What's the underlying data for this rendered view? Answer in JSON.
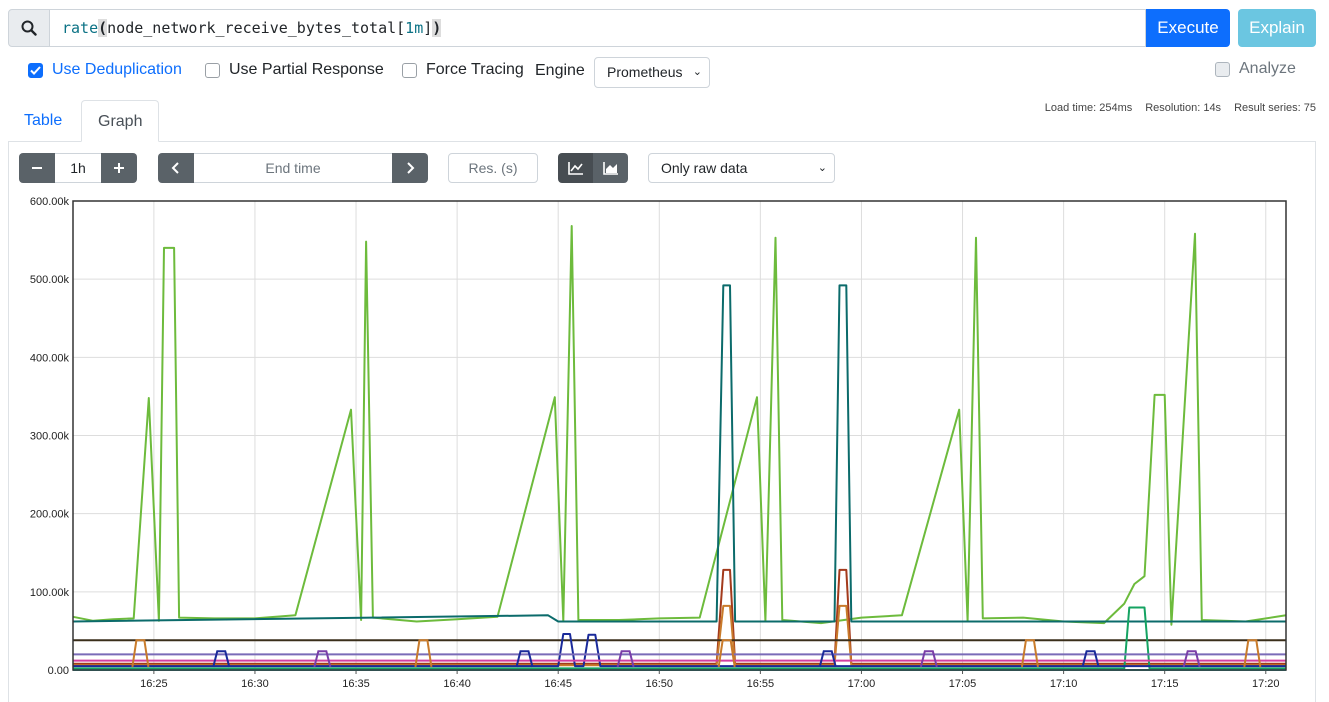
{
  "query": {
    "fn": "rate",
    "open": "(",
    "metric": "node_network_receive_bytes_total[",
    "range": "1m",
    "close_bracket": "]",
    "close": ")"
  },
  "buttons": {
    "execute": "Execute",
    "explain": "Explain"
  },
  "options": {
    "dedup": "Use Deduplication",
    "partial": "Use Partial Response",
    "tracing": "Force Tracing",
    "engine_label": "Engine",
    "engine_value": "Prometheus",
    "analyze": "Analyze"
  },
  "tabs": {
    "table": "Table",
    "graph": "Graph"
  },
  "stats": {
    "load": "Load time: 254ms",
    "resolution": "Resolution: 14s",
    "series": "Result series: 75"
  },
  "controls": {
    "minus": "−",
    "range": "1h",
    "plus": "+",
    "end_time": "End time",
    "res": "Res. (s)",
    "raw": "Only raw data"
  },
  "icons": {
    "search": "search-icon",
    "minus": "minus-icon",
    "plus": "plus-icon",
    "prev": "chevron-left-icon",
    "next": "chevron-right-icon",
    "lines": "line-chart-icon",
    "stacked": "area-chart-icon"
  },
  "colors": {
    "primary": "#0d6efd",
    "info": "#5bc0de",
    "dark_btn": "#5a6268"
  },
  "chart_data": {
    "type": "line",
    "ylim": [
      0,
      600000
    ],
    "y_ticks": [
      "0.00",
      "100.00k",
      "200.00k",
      "300.00k",
      "400.00k",
      "500.00k",
      "600.00k"
    ],
    "x_ticks": [
      "16:25",
      "16:30",
      "16:35",
      "16:40",
      "16:45",
      "16:50",
      "16:55",
      "17:00",
      "17:05",
      "17:10",
      "17:15",
      "17:20"
    ],
    "x_range": [
      "16:21",
      "17:21"
    ],
    "grid": true,
    "series": [
      {
        "color": "#6dbb3c",
        "points": [
          [
            "16:21:00",
            68000
          ],
          [
            "16:22:00",
            63000
          ],
          [
            "16:23:00",
            65000
          ],
          [
            "16:24:00",
            66000
          ],
          [
            "16:24:45",
            348000
          ],
          [
            "16:25:15",
            63000
          ],
          [
            "16:25:30",
            540000
          ],
          [
            "16:26:00",
            540000
          ],
          [
            "16:26:15",
            67000
          ],
          [
            "16:28:00",
            66000
          ],
          [
            "16:30:00",
            66000
          ],
          [
            "16:32:00",
            70000
          ],
          [
            "16:34:45",
            333000
          ],
          [
            "16:35:15",
            64000
          ],
          [
            "16:35:30",
            548000
          ],
          [
            "16:35:50",
            67000
          ],
          [
            "16:38:00",
            62000
          ],
          [
            "16:40:00",
            65000
          ],
          [
            "16:42:00",
            68000
          ],
          [
            "16:44:50",
            349000
          ],
          [
            "16:45:15",
            63000
          ],
          [
            "16:45:40",
            568000
          ],
          [
            "16:46:00",
            64000
          ],
          [
            "16:48:00",
            64000
          ],
          [
            "16:50:00",
            66000
          ],
          [
            "16:52:00",
            67000
          ],
          [
            "16:54:50",
            349000
          ],
          [
            "16:55:15",
            63000
          ],
          [
            "16:55:45",
            553000
          ],
          [
            "16:56:05",
            64000
          ],
          [
            "16:58:00",
            60000
          ],
          [
            "17:00:00",
            67000
          ],
          [
            "17:02:00",
            70000
          ],
          [
            "17:04:50",
            333000
          ],
          [
            "17:05:15",
            63000
          ],
          [
            "17:05:40",
            553000
          ],
          [
            "17:06:00",
            66000
          ],
          [
            "17:08:00",
            67000
          ],
          [
            "17:10:00",
            62000
          ],
          [
            "17:12:00",
            60000
          ],
          [
            "17:13:00",
            85000
          ],
          [
            "17:13:30",
            110000
          ],
          [
            "17:14:00",
            120000
          ],
          [
            "17:14:30",
            352000
          ],
          [
            "17:15:00",
            352000
          ],
          [
            "17:15:20",
            58000
          ],
          [
            "17:16:30",
            558000
          ],
          [
            "17:16:50",
            64000
          ],
          [
            "17:19:00",
            62000
          ],
          [
            "17:21:00",
            70000
          ]
        ]
      },
      {
        "color": "#0b6b6b",
        "points": [
          [
            "16:21:00",
            62000
          ],
          [
            "16:44:30",
            70000
          ],
          [
            "16:45:00",
            62000
          ],
          [
            "16:52:50",
            62000
          ],
          [
            "16:53:10",
            492000
          ],
          [
            "16:53:30",
            492000
          ],
          [
            "16:53:45",
            62000
          ],
          [
            "16:58:40",
            62000
          ],
          [
            "16:58:55",
            492000
          ],
          [
            "16:59:15",
            492000
          ],
          [
            "16:59:30",
            62000
          ],
          [
            "17:21:00",
            62000
          ]
        ]
      },
      {
        "color": "#a33a1c",
        "points": [
          [
            "16:21:00",
            8000
          ],
          [
            "16:52:50",
            8000
          ],
          [
            "16:53:10",
            128000
          ],
          [
            "16:53:30",
            128000
          ],
          [
            "16:53:45",
            8000
          ],
          [
            "16:58:40",
            8000
          ],
          [
            "16:58:55",
            128000
          ],
          [
            "16:59:15",
            128000
          ],
          [
            "16:59:30",
            8000
          ],
          [
            "17:21:00",
            8000
          ]
        ]
      },
      {
        "color": "#c97b2b",
        "points": [
          [
            "16:21:00",
            6000
          ],
          [
            "16:52:50",
            6000
          ],
          [
            "16:53:10",
            82000
          ],
          [
            "16:53:30",
            82000
          ],
          [
            "16:53:45",
            6000
          ],
          [
            "16:58:40",
            6000
          ],
          [
            "16:58:55",
            82000
          ],
          [
            "16:59:15",
            82000
          ],
          [
            "16:59:30",
            6000
          ],
          [
            "17:21:00",
            6000
          ]
        ]
      },
      {
        "color": "#3a2e1a",
        "points": [
          [
            "16:21:00",
            38000
          ],
          [
            "17:21:00",
            38000
          ]
        ]
      },
      {
        "color": "#15a362",
        "points": [
          [
            "16:21:00",
            2000
          ],
          [
            "17:13:00",
            2000
          ],
          [
            "17:13:15",
            80000
          ],
          [
            "17:14:00",
            80000
          ],
          [
            "17:14:15",
            2000
          ],
          [
            "17:21:00",
            2000
          ]
        ]
      },
      {
        "color": "#1a2a9a",
        "points": [
          [
            "16:21:00",
            5000
          ],
          [
            "16:45:00",
            5000
          ],
          [
            "16:45:15",
            46000
          ],
          [
            "16:45:35",
            46000
          ],
          [
            "16:45:50",
            5000
          ],
          [
            "16:46:15",
            5000
          ],
          [
            "16:46:30",
            45000
          ],
          [
            "16:46:50",
            45000
          ],
          [
            "16:47:05",
            5000
          ],
          [
            "17:21:00",
            5000
          ]
        ]
      },
      {
        "color": "#7a6bb8",
        "points": [
          [
            "16:21:00",
            20000
          ],
          [
            "17:21:00",
            20000
          ]
        ]
      },
      {
        "color": "#d43fa0",
        "points": [
          [
            "16:21:00",
            12000
          ],
          [
            "17:21:00",
            12000
          ]
        ]
      },
      {
        "color": "#2aa5a5",
        "points": [
          [
            "16:21:00",
            0
          ],
          [
            "17:21:00",
            0
          ]
        ]
      }
    ]
  }
}
